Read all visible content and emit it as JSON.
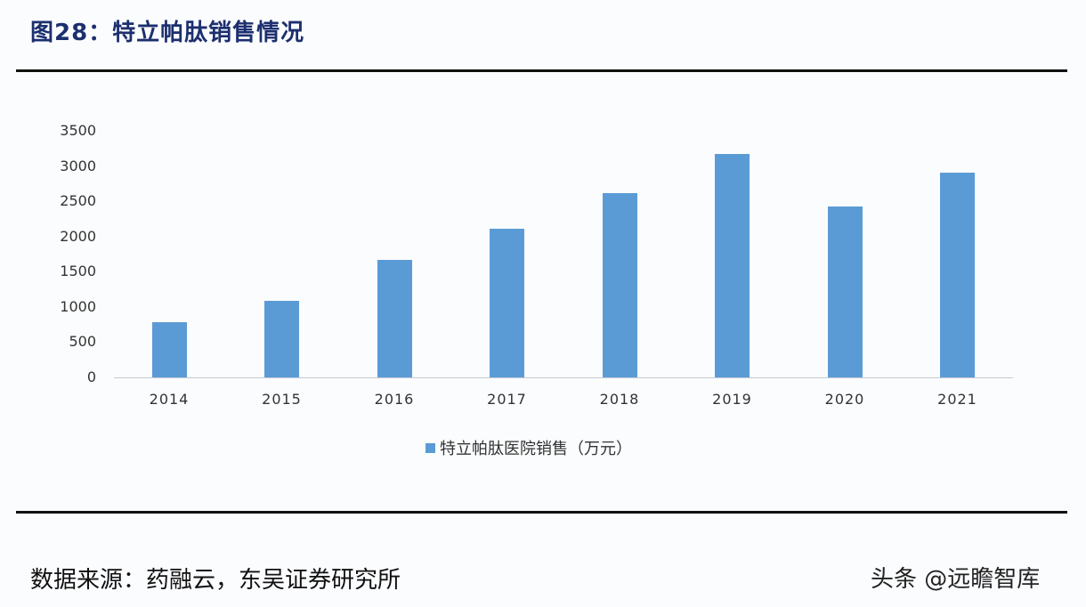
{
  "header": {
    "title": "图28：特立帕肽销售情况"
  },
  "footer": {
    "source": "数据来源：药融云，东吴证券研究所",
    "watermark": "头条 @远瞻智库"
  },
  "colors": {
    "bar": "#5b9bd5",
    "title": "#1c2f6e",
    "axis": "#c4c9d2"
  },
  "chart_data": {
    "type": "bar",
    "title": "特立帕肽销售情况",
    "categories": [
      "2014",
      "2015",
      "2016",
      "2017",
      "2018",
      "2019",
      "2020",
      "2021"
    ],
    "series": [
      {
        "name": "特立帕肽医院销售（万元）",
        "values": [
          780,
          1090,
          1670,
          2110,
          2615,
          3170,
          2425,
          2905
        ]
      }
    ],
    "xlabel": "",
    "ylabel": "",
    "ylim": [
      0,
      3500
    ],
    "yticks": [
      "0",
      "500",
      "1000",
      "1500",
      "2000",
      "2500",
      "3000",
      "3500"
    ],
    "grid": false,
    "legend_position": "bottom"
  }
}
